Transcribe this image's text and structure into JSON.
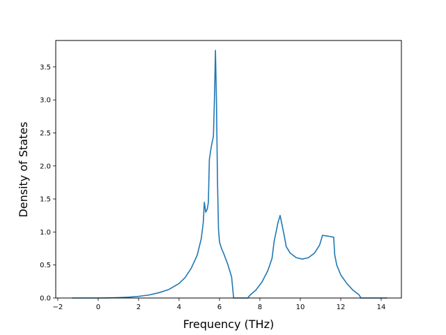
{
  "chart_data": {
    "type": "line",
    "title": "",
    "xlabel": "Frequency (THz)",
    "ylabel": "Density of States",
    "xlim": [
      -2.1,
      15.0
    ],
    "ylim": [
      0,
      3.9
    ],
    "xticks": [
      -2,
      0,
      2,
      4,
      6,
      8,
      10,
      12,
      14
    ],
    "xtick_labels": [
      "−2",
      "0",
      "2",
      "4",
      "6",
      "8",
      "10",
      "12",
      "14"
    ],
    "yticks": [
      0.0,
      0.5,
      1.0,
      1.5,
      2.0,
      2.5,
      3.0,
      3.5
    ],
    "ytick_labels": [
      "0.0",
      "0.5",
      "1.0",
      "1.5",
      "2.0",
      "2.5",
      "3.0",
      "3.5"
    ],
    "grid": false,
    "line_color": "#1f77b4",
    "series": [
      {
        "x": [
          -1.3,
          -1.0,
          -0.5,
          0.0,
          0.5,
          1.0,
          1.5,
          2.0,
          2.5,
          3.0,
          3.5,
          4.0,
          4.3,
          4.6,
          4.9,
          5.1,
          5.2,
          5.25,
          5.32,
          5.4,
          5.45,
          5.5,
          5.6,
          5.7,
          5.75,
          5.8,
          5.85,
          5.9,
          5.95,
          6.0,
          6.1,
          6.2,
          6.4,
          6.6,
          6.7,
          6.8,
          6.8,
          7.2,
          7.4,
          7.5,
          7.8,
          8.1,
          8.4,
          8.6,
          8.7,
          8.8,
          8.9,
          9.0,
          9.1,
          9.2,
          9.3,
          9.5,
          9.8,
          10.1,
          10.4,
          10.7,
          10.95,
          11.1,
          11.3,
          11.5,
          11.65,
          11.7,
          11.8,
          12.0,
          12.3,
          12.6,
          12.9,
          13.0,
          13.05,
          13.5,
          14.0,
          14.3
        ],
        "y": [
          0.0,
          0.0,
          0.0,
          0.0,
          0.002,
          0.006,
          0.013,
          0.025,
          0.045,
          0.08,
          0.13,
          0.22,
          0.31,
          0.45,
          0.65,
          0.9,
          1.15,
          1.45,
          1.3,
          1.35,
          1.45,
          2.1,
          2.3,
          2.45,
          3.0,
          3.75,
          3.0,
          1.8,
          1.05,
          0.85,
          0.75,
          0.68,
          0.52,
          0.32,
          0.0,
          0.0,
          0.0,
          0.0,
          0.0,
          0.04,
          0.12,
          0.24,
          0.42,
          0.6,
          0.85,
          1.0,
          1.15,
          1.25,
          1.1,
          0.95,
          0.78,
          0.68,
          0.61,
          0.59,
          0.61,
          0.68,
          0.8,
          0.95,
          0.94,
          0.93,
          0.92,
          0.66,
          0.5,
          0.35,
          0.22,
          0.12,
          0.05,
          0.0,
          0.0,
          0.0,
          0.0,
          0.0
        ]
      }
    ]
  }
}
